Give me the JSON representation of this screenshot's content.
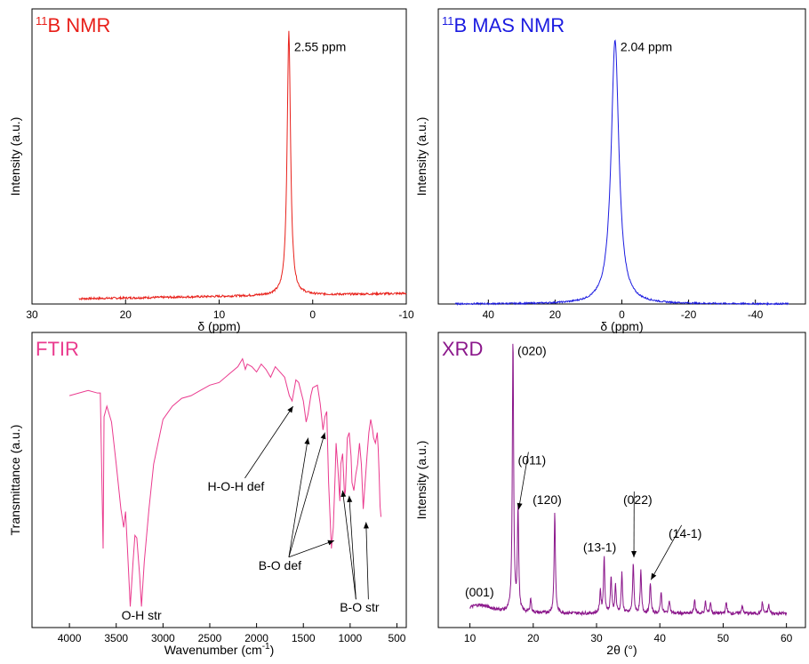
{
  "chart_data": [
    {
      "type": "line",
      "title_main": "B NMR",
      "title_sup": "11",
      "title_color": "#e8201a",
      "line_color": "#e8201a",
      "xlabel": "δ (ppm)",
      "ylabel": "Intensity (a.u.)",
      "xlim": [
        30,
        -10
      ],
      "x_ticks": [
        30,
        20,
        10,
        0,
        -10
      ],
      "x_tick_labels": [
        "30",
        "20",
        "10",
        "0",
        "-10"
      ],
      "ylim": [
        0,
        1.12
      ],
      "y_tick_labels": false,
      "baseline": {
        "start": 0.02,
        "end": 0.04,
        "noise": 0.004
      },
      "series": [
        {
          "x": [
            25,
            20,
            15,
            10,
            6,
            4,
            3.2,
            2.9,
            2.7,
            2.55,
            2.4,
            2.2,
            1.9,
            1.5,
            0.5,
            -2,
            -5,
            -10
          ],
          "peaks": [
            {
              "center": 2.55,
              "width": 0.22,
              "height": 1.0
            }
          ]
        }
      ],
      "annotations": [
        {
          "text": "2.55 ppm",
          "x": 2.55,
          "y": 1.0
        }
      ]
    },
    {
      "type": "line",
      "title_main": "B MAS NMR",
      "title_sup": "11",
      "title_color": "#1c1ce0",
      "line_color": "#1c1ce0",
      "xlabel": "δ (ppm)",
      "ylabel": "Intensity (a.u.)",
      "xlim": [
        55,
        -55
      ],
      "x_ticks": [
        40,
        20,
        0,
        -20,
        -40
      ],
      "x_tick_labels": [
        "40",
        "20",
        "0",
        "-20",
        "-40"
      ],
      "ylim": [
        0,
        1.12
      ],
      "y_tick_labels": false,
      "baseline": {
        "start": 0.0,
        "end": 0.0,
        "noise": 0.003
      },
      "series": [
        {
          "x": [
            50,
            30,
            15,
            8,
            5,
            3.5,
            2.04,
            0.5,
            -1,
            -4,
            -10,
            -25,
            -50
          ],
          "peaks": [
            {
              "center": 2.04,
              "width": 1.4,
              "height": 1.0
            }
          ]
        }
      ],
      "annotations": [
        {
          "text": "2.04 ppm",
          "x": 2.04,
          "y": 1.0
        }
      ]
    },
    {
      "type": "line",
      "title_main": "FTIR",
      "title_color": "#ea3a8e",
      "line_color": "#ea3a8e",
      "xlabel": "Wavenumber (cm",
      "xlabel_sup": "-1",
      "xlabel_end": ")",
      "ylabel": "Transmittance (a.u.)",
      "xlim": [
        4400,
        400
      ],
      "x_ticks": [
        4000,
        3500,
        3000,
        2500,
        2000,
        1500,
        1000,
        500
      ],
      "x_tick_labels": [
        "4000",
        "3500",
        "3000",
        "2500",
        "2000",
        "1500",
        "1000",
        "500"
      ],
      "ylim": [
        0,
        1.12
      ],
      "y_tick_labels": false,
      "series": [
        {
          "x": [
            4000,
            3800,
            3700,
            3670,
            3640,
            3630,
            3600,
            3550,
            3500,
            3450,
            3420,
            3400,
            3380,
            3350,
            3320,
            3300,
            3280,
            3250,
            3230,
            3200,
            3150,
            3100,
            3000,
            2900,
            2800,
            2700,
            2600,
            2500,
            2400,
            2300,
            2200,
            2150,
            2120,
            2100,
            2050,
            2000,
            1950,
            1900,
            1850,
            1800,
            1750,
            1700,
            1650,
            1620,
            1600,
            1580,
            1550,
            1500,
            1470,
            1450,
            1420,
            1400,
            1350,
            1320,
            1290,
            1270,
            1250,
            1230,
            1200,
            1180,
            1160,
            1150,
            1130,
            1110,
            1100,
            1080,
            1060,
            1050,
            1030,
            1010,
            990,
            980,
            960,
            940,
            920,
            900,
            880,
            860,
            850,
            820,
            800,
            780,
            760,
            750,
            730,
            710,
            700,
            690,
            680,
            670
          ],
          "y": [
            0.88,
            0.9,
            0.89,
            0.89,
            0.3,
            0.8,
            0.84,
            0.78,
            0.62,
            0.45,
            0.38,
            0.44,
            0.3,
            0.08,
            0.25,
            0.35,
            0.34,
            0.2,
            0.08,
            0.25,
            0.45,
            0.62,
            0.79,
            0.84,
            0.87,
            0.88,
            0.9,
            0.92,
            0.93,
            0.96,
            0.99,
            1.02,
            0.98,
            1.0,
            0.99,
            0.97,
            1.0,
            0.98,
            0.95,
            0.99,
            0.97,
            0.95,
            0.88,
            0.86,
            0.9,
            0.94,
            0.93,
            0.86,
            0.78,
            0.81,
            0.88,
            0.91,
            0.92,
            0.85,
            0.75,
            0.8,
            0.82,
            0.55,
            0.3,
            0.38,
            0.58,
            0.7,
            0.6,
            0.48,
            0.62,
            0.66,
            0.5,
            0.52,
            0.72,
            0.74,
            0.65,
            0.55,
            0.52,
            0.58,
            0.62,
            0.7,
            0.62,
            0.45,
            0.5,
            0.65,
            0.74,
            0.79,
            0.75,
            0.72,
            0.7,
            0.74,
            0.68,
            0.58,
            0.46,
            0.42
          ]
        }
      ],
      "annotations": [
        {
          "text": "H-O-H def",
          "tx": 2220,
          "ty": 0.52,
          "arrows": [
            [
              1610,
              0.84
            ]
          ]
        },
        {
          "text": "B-O def",
          "tx": 1750,
          "ty": 0.22,
          "arrows": [
            [
              1450,
              0.72
            ],
            [
              1270,
              0.74
            ],
            [
              1170,
              0.33
            ]
          ]
        },
        {
          "text": "O-H str",
          "tx": 3230,
          "ty": 0.03
        },
        {
          "text": "B-O str",
          "tx": 900,
          "ty": 0.06,
          "arrows": [
            [
              1080,
              0.52
            ],
            [
              1010,
              0.5
            ],
            [
              830,
              0.4
            ]
          ]
        }
      ]
    },
    {
      "type": "line",
      "title_main": "XRD",
      "title_color": "#8b178b",
      "line_color": "#8b178b",
      "xlabel": "2θ (°)",
      "ylabel": "Intensity (a.u.)",
      "xlim": [
        5,
        63
      ],
      "x_ticks": [
        10,
        20,
        30,
        40,
        50,
        60
      ],
      "x_tick_labels": [
        "10",
        "20",
        "30",
        "40",
        "50",
        "60"
      ],
      "ylim": [
        0,
        1.05
      ],
      "y_tick_labels": false,
      "series": [
        {
          "x_range": [
            10,
            60
          ],
          "background": 0.05,
          "peaks": [
            {
              "center": 11.5,
              "height": 0.03,
              "width": 2.5
            },
            {
              "center": 16.8,
              "height": 0.98,
              "width": 0.12
            },
            {
              "center": 17.6,
              "height": 0.37,
              "width": 0.12
            },
            {
              "center": 19.6,
              "height": 0.05,
              "width": 0.12
            },
            {
              "center": 23.4,
              "height": 0.36,
              "width": 0.12
            },
            {
              "center": 30.6,
              "height": 0.08,
              "width": 0.12
            },
            {
              "center": 31.2,
              "height": 0.2,
              "width": 0.12
            },
            {
              "center": 32.3,
              "height": 0.13,
              "width": 0.12
            },
            {
              "center": 33.0,
              "height": 0.1,
              "width": 0.12
            },
            {
              "center": 34.0,
              "height": 0.14,
              "width": 0.12
            },
            {
              "center": 35.8,
              "height": 0.18,
              "width": 0.12
            },
            {
              "center": 37.0,
              "height": 0.15,
              "width": 0.12
            },
            {
              "center": 38.5,
              "height": 0.11,
              "width": 0.12
            },
            {
              "center": 40.2,
              "height": 0.08,
              "width": 0.12
            },
            {
              "center": 41.5,
              "height": 0.05,
              "width": 0.12
            },
            {
              "center": 45.5,
              "height": 0.05,
              "width": 0.12
            },
            {
              "center": 47.2,
              "height": 0.04,
              "width": 0.12
            },
            {
              "center": 48.0,
              "height": 0.04,
              "width": 0.12
            },
            {
              "center": 50.5,
              "height": 0.04,
              "width": 0.12
            },
            {
              "center": 53.0,
              "height": 0.03,
              "width": 0.12
            },
            {
              "center": 56.2,
              "height": 0.04,
              "width": 0.12
            },
            {
              "center": 57.2,
              "height": 0.03,
              "width": 0.12
            }
          ]
        }
      ],
      "annotations": [
        {
          "text": "(001)",
          "tx": 11.5,
          "ty": 0.11
        },
        {
          "text": "(020)",
          "tx": 19.8,
          "ty": 0.97
        },
        {
          "text": "(011)",
          "tx": 19.8,
          "ty": 0.58,
          "arrows": [
            [
              17.7,
              0.42
            ]
          ]
        },
        {
          "text": "(120)",
          "tx": 22.2,
          "ty": 0.44
        },
        {
          "text": "(13-1)",
          "tx": 30.5,
          "ty": 0.27
        },
        {
          "text": "(022)",
          "tx": 36.5,
          "ty": 0.44,
          "arrows": [
            [
              35.9,
              0.25
            ]
          ]
        },
        {
          "text": "(14-1)",
          "tx": 44.0,
          "ty": 0.32,
          "arrows": [
            [
              38.6,
              0.17
            ]
          ]
        }
      ]
    }
  ]
}
